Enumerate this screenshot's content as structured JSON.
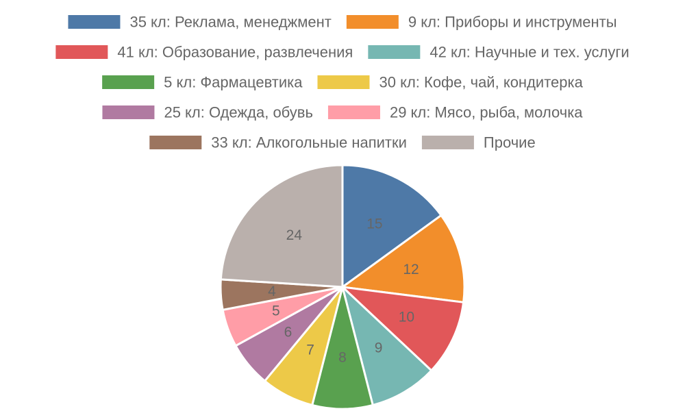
{
  "chart_data": {
    "type": "pie",
    "legend_position": "top",
    "series": [
      {
        "name": "35 кл: Реклама, менеджмент",
        "value": 15,
        "color": "#4e79a7"
      },
      {
        "name": "9 кл: Приборы и инструменты",
        "value": 12,
        "color": "#f28e2b"
      },
      {
        "name": "41 кл: Образование, развлечения",
        "value": 10,
        "color": "#e15759"
      },
      {
        "name": "42 кл: Научные и тех. услуги",
        "value": 9,
        "color": "#76b7b2"
      },
      {
        "name": "5 кл: Фармацевтика",
        "value": 8,
        "color": "#59a14f"
      },
      {
        "name": "30 кл: Кофе, чай, кондитерка",
        "value": 7,
        "color": "#edc948"
      },
      {
        "name": "25 кл: Одежда, обувь",
        "value": 6,
        "color": "#b07aa1"
      },
      {
        "name": "29 кл: Мясо, рыба, молочка",
        "value": 5,
        "color": "#ff9da7"
      },
      {
        "name": "33 кл: Алкогольные напитки",
        "value": 4,
        "color": "#9c755f"
      },
      {
        "name": "Прочие",
        "value": 24,
        "color": "#bab0ac"
      }
    ]
  }
}
